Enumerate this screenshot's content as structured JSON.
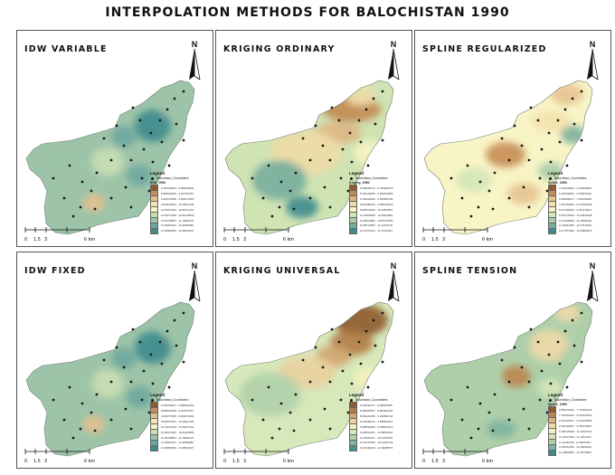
{
  "title": "INTERPOLATION METHODS FOR BALOCHISTAN 1990",
  "north_letter": "N",
  "scale_labels": [
    "0",
    "1.5",
    "3",
    "6 km"
  ],
  "legend_heading": "Legend",
  "legend_point_label": "Balochistan_Coordinates",
  "ramps": {
    "idw": [
      "#8e5a2f",
      "#c68d55",
      "#e5c08d",
      "#f2e5b5",
      "#f1f2c8",
      "#c9dfb2",
      "#9dc4a8",
      "#6ea7a0",
      "#3f8b8e"
    ],
    "kriging_ordinary": [
      "#8e5a2f",
      "#c28a52",
      "#dfb683",
      "#f0dba7",
      "#f6f3c4",
      "#cfe3b3",
      "#a8cba5",
      "#78ae9d",
      "#3f8b8e"
    ],
    "spline_regularized": [
      "#8e5a2f",
      "#c68d55",
      "#e7c391",
      "#f3e2ae",
      "#f8f4c6",
      "#d4e6b7",
      "#a9cda9",
      "#7aafa0",
      "#3f8b8e"
    ],
    "kriging_universal": [
      "#8e5a2f",
      "#b37b45",
      "#d3a572",
      "#ead29f",
      "#f5efbf",
      "#d7e8bb",
      "#b0d1ab",
      "#82b5a1",
      "#4a9292"
    ],
    "spline_tension": [
      "#8e5a2f",
      "#bd854d",
      "#dcb27e",
      "#efd9a7",
      "#f6f2c4",
      "#d6e7b9",
      "#aecfaa",
      "#7fb2a0",
      "#3f8b8e"
    ]
  },
  "panels": [
    {
      "title": "IDW VARIABLE",
      "legend_layer": "IDW_1990",
      "ramp": "idw",
      "legend_labels": [
        "8.151636697 - 8.896543094",
        "8.896543095 - 9.404767357",
        "9.404767358 - 9.844670350",
        "9.844670351 - 10.24527198",
        "10.24527199 - 10.56271404",
        "10.56271405 - 10.84128556",
        "10.84128557 - 11.18060233",
        "11.18060234 - 11.66583468",
        "11.66583469 - 12.08021607"
      ]
    },
    {
      "title": "KRIGING ORDINARY",
      "legend_layer": "Kriging_1990",
      "ramp": "kriging_ordinary",
      "legend_labels": [
        "8.384296770 - 8.794203079",
        "8.794203080 - 9.183630089",
        "9.183630090 - 9.553586780",
        "9.553586781 - 9.905044619",
        "9.905044620 - 10.23893907",
        "10.23893908 - 10.55613881",
        "10.55613882 - 10.85747864",
        "10.85747865 - 11.14375132",
        "11.14375133 - 11.70151254"
      ]
    },
    {
      "title": "SPLINE REGULARIZED",
      "legend_layer": "Spline_1990",
      "ramp": "spline_regularized",
      "legend_labels": [
        "4.123040642 - 5.342348001",
        "5.342348002 - 6.326839116",
        "6.326839117 - 7.301652082",
        "7.301652083 - 8.276465048",
        "8.276465049 - 9.251278014",
        "9.251278015 - 10.22609098",
        "10.22609099 - 11.20090394",
        "11.20090395 - 12.17571691",
        "12.17571692 - 15.90883512"
      ]
    },
    {
      "title": "IDW FIXED",
      "legend_layer": "",
      "ramp": "idw",
      "legend_labels": [
        "8.151636697 - 8.896543094",
        "8.896543095 - 9.404767357",
        "9.404767358 - 9.844670350",
        "9.844670351 - 10.24527198",
        "10.24527199 - 10.56271404",
        "10.56271405 - 10.84128556",
        "10.84128557 - 11.18060233",
        "11.18060234 - 11.66583468",
        "11.66583469 - 12.08021607"
      ]
    },
    {
      "title": "KRIGING UNIVERSAL",
      "legend_layer": "",
      "ramp": "kriging_universal",
      "legend_labels": [
        "8.106111017 - 8.489515506",
        "8.489515507 - 8.864261352",
        "8.864261353 - 9.230582741",
        "9.230582742 - 9.588592931",
        "9.588592932 - 9.938542210",
        "9.938542211 - 10.28061016",
        "10.28061017 - 10.61497651",
        "10.61497652 - 10.94184148",
        "10.94184149 - 11.50638573"
      ]
    },
    {
      "title": "SPLINE TENSION",
      "legend_layer": "Spline_1990",
      "ramp": "spline_tension",
      "legend_labels": [
        "6.860479632 - 7.723291042",
        "7.723291043 - 8.434120416",
        "8.434120417 - 9.102166956",
        "9.102166957 - 9.786725697",
        "9.786725698 - 10.44027063",
        "10.44027064 - 11.12011237",
        "11.12011238 - 11.80254517",
        "11.80254518 - 12.49826861",
        "12.49826862 - 13.39739827"
      ]
    }
  ]
}
